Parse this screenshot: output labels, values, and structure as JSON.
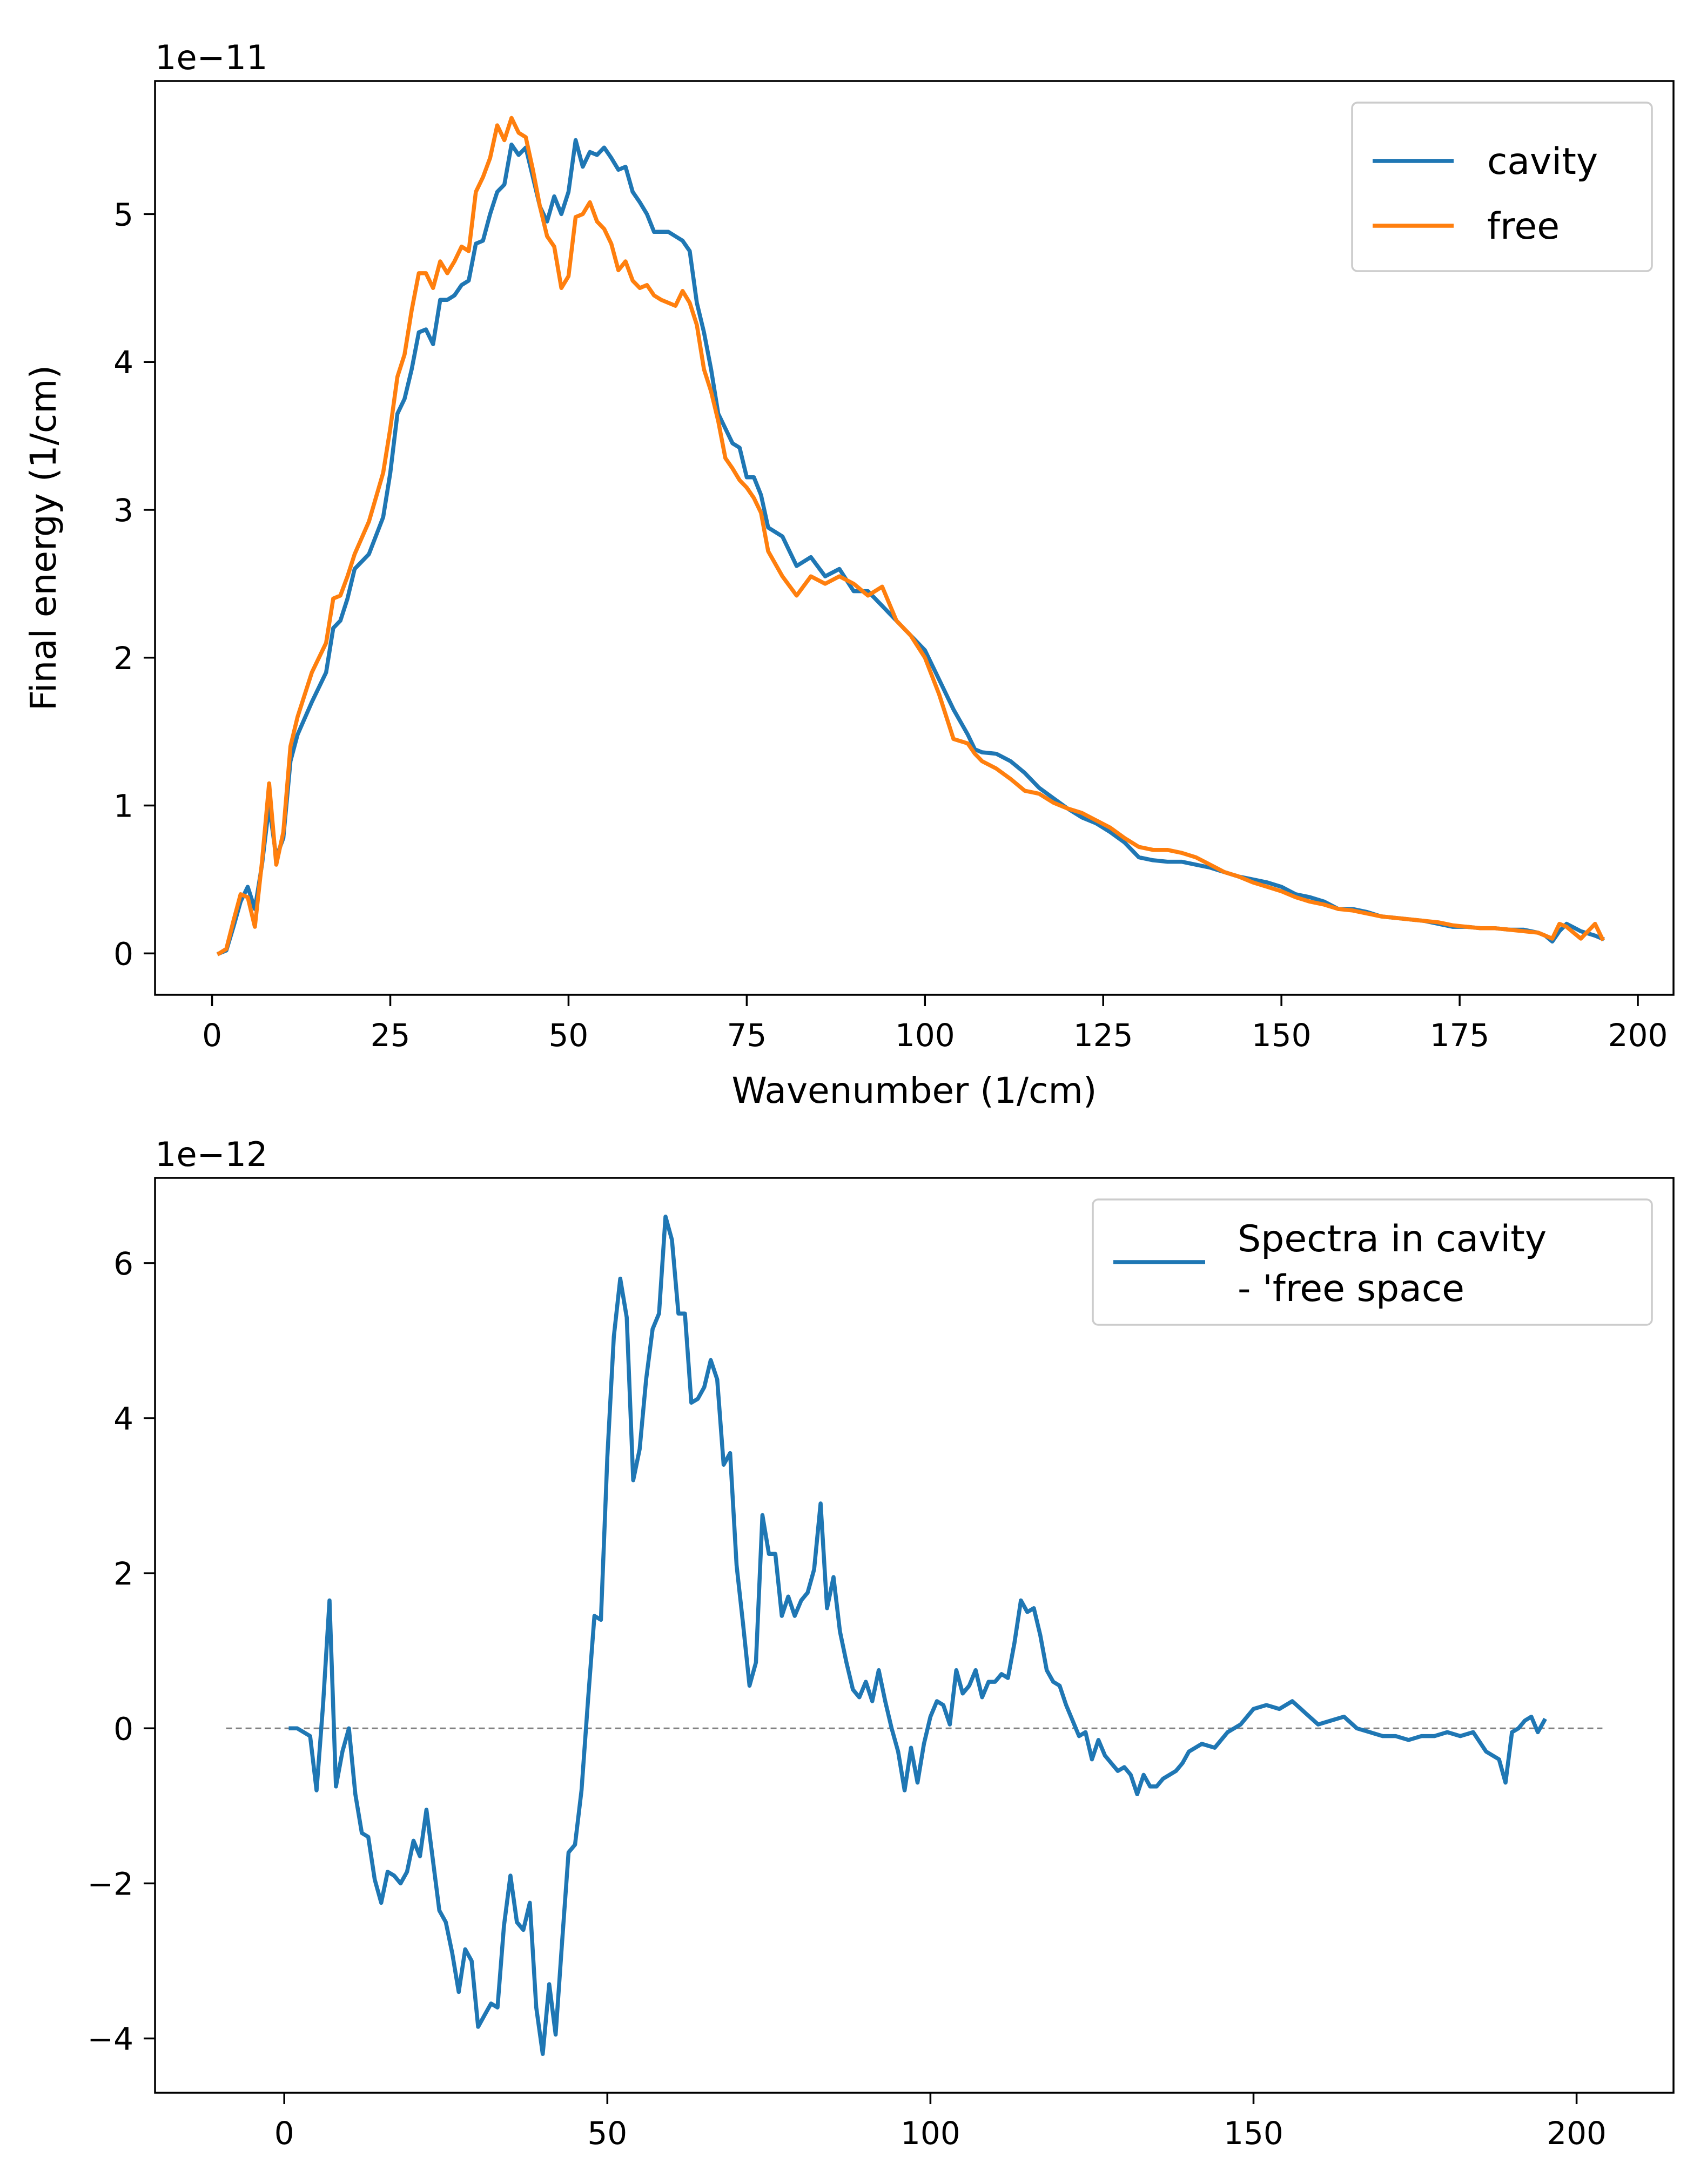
{
  "chart_data": [
    {
      "type": "line",
      "xlabel": "Wavenumber (1/cm)",
      "ylabel": "Final energy (1/cm)",
      "y_scale_label": "1e−11",
      "xlim": [
        -8,
        205
      ],
      "ylim": [
        -0.28,
        5.9
      ],
      "xticks": [
        0,
        25,
        50,
        75,
        100,
        125,
        150,
        175,
        200
      ],
      "yticks": [
        0,
        1,
        2,
        3,
        4,
        5
      ],
      "legend_position": "top-right",
      "series": [
        {
          "name": "cavity",
          "color": "#1f77b4",
          "x": [
            1,
            2,
            3,
            4,
            5,
            6,
            7,
            8,
            9,
            10,
            11,
            12,
            14,
            16,
            17,
            18,
            19,
            20,
            22,
            24,
            25,
            26,
            27,
            28,
            29,
            30,
            31,
            32,
            33,
            34,
            35,
            36,
            37,
            38,
            39,
            40,
            41,
            42,
            43,
            44,
            45,
            46,
            47,
            48,
            49,
            50,
            51,
            52,
            53,
            54,
            55,
            56,
            57,
            58,
            59,
            60,
            61,
            62,
            63,
            64,
            65,
            66,
            67,
            68,
            69,
            70,
            71,
            72,
            73,
            74,
            75,
            76,
            77,
            78,
            80,
            82,
            84,
            86,
            88,
            90,
            92,
            94,
            96,
            98,
            100,
            102,
            104,
            106,
            107,
            108,
            110,
            112,
            114,
            116,
            118,
            120,
            122,
            124,
            126,
            128,
            130,
            132,
            134,
            136,
            138,
            140,
            142,
            144,
            146,
            148,
            150,
            152,
            154,
            156,
            158,
            160,
            162,
            164,
            166,
            168,
            170,
            172,
            174,
            176,
            178,
            180,
            182,
            184,
            186,
            187,
            188,
            189,
            190,
            192,
            194,
            195
          ],
          "values": [
            0.0,
            0.02,
            0.18,
            0.35,
            0.45,
            0.3,
            0.6,
            1.0,
            0.65,
            0.78,
            1.3,
            1.48,
            1.7,
            1.9,
            2.2,
            2.25,
            2.4,
            2.6,
            2.7,
            2.95,
            3.25,
            3.65,
            3.75,
            3.95,
            4.2,
            4.22,
            4.12,
            4.42,
            4.42,
            4.45,
            4.52,
            4.55,
            4.8,
            4.82,
            5.0,
            5.15,
            5.2,
            5.47,
            5.4,
            5.45,
            5.25,
            5.05,
            4.95,
            5.12,
            5.0,
            5.15,
            5.5,
            5.32,
            5.42,
            5.4,
            5.45,
            5.38,
            5.3,
            5.32,
            5.15,
            5.08,
            5.0,
            4.88,
            4.88,
            4.88,
            4.85,
            4.82,
            4.75,
            4.4,
            4.2,
            3.95,
            3.65,
            3.55,
            3.45,
            3.42,
            3.22,
            3.22,
            3.1,
            2.88,
            2.82,
            2.62,
            2.68,
            2.55,
            2.6,
            2.45,
            2.45,
            2.35,
            2.25,
            2.15,
            2.05,
            1.85,
            1.65,
            1.48,
            1.38,
            1.36,
            1.35,
            1.3,
            1.22,
            1.12,
            1.05,
            0.98,
            0.92,
            0.88,
            0.82,
            0.75,
            0.65,
            0.63,
            0.62,
            0.62,
            0.6,
            0.58,
            0.55,
            0.52,
            0.5,
            0.48,
            0.45,
            0.4,
            0.38,
            0.35,
            0.3,
            0.3,
            0.28,
            0.25,
            0.24,
            0.23,
            0.22,
            0.2,
            0.18,
            0.18,
            0.17,
            0.17,
            0.16,
            0.16,
            0.14,
            0.12,
            0.08,
            0.15,
            0.2,
            0.15,
            0.12,
            0.1
          ]
        },
        {
          "name": "free",
          "color": "#ff7f0e",
          "x": [
            1,
            2,
            3,
            4,
            5,
            6,
            7,
            8,
            9,
            10,
            11,
            12,
            14,
            16,
            17,
            18,
            19,
            20,
            22,
            24,
            25,
            26,
            27,
            28,
            29,
            30,
            31,
            32,
            33,
            34,
            35,
            36,
            37,
            38,
            39,
            40,
            41,
            42,
            43,
            44,
            45,
            46,
            47,
            48,
            49,
            50,
            51,
            52,
            53,
            54,
            55,
            56,
            57,
            58,
            59,
            60,
            61,
            62,
            63,
            64,
            65,
            66,
            67,
            68,
            69,
            70,
            71,
            72,
            73,
            74,
            75,
            76,
            77,
            78,
            80,
            82,
            84,
            86,
            88,
            90,
            92,
            94,
            96,
            98,
            100,
            102,
            104,
            106,
            107,
            108,
            110,
            112,
            114,
            116,
            118,
            120,
            122,
            124,
            126,
            128,
            130,
            132,
            134,
            136,
            138,
            140,
            142,
            144,
            146,
            148,
            150,
            152,
            154,
            156,
            158,
            160,
            162,
            164,
            166,
            168,
            170,
            172,
            174,
            176,
            178,
            180,
            182,
            184,
            186,
            187,
            188,
            189,
            190,
            192,
            194,
            195
          ],
          "values": [
            0.0,
            0.03,
            0.22,
            0.4,
            0.38,
            0.18,
            0.62,
            1.15,
            0.6,
            0.82,
            1.4,
            1.6,
            1.9,
            2.1,
            2.4,
            2.42,
            2.55,
            2.7,
            2.92,
            3.25,
            3.55,
            3.9,
            4.05,
            4.35,
            4.6,
            4.6,
            4.5,
            4.68,
            4.6,
            4.68,
            4.78,
            4.75,
            5.15,
            5.25,
            5.38,
            5.6,
            5.5,
            5.65,
            5.55,
            5.52,
            5.3,
            5.05,
            4.85,
            4.78,
            4.5,
            4.58,
            4.98,
            5.0,
            5.08,
            4.95,
            4.9,
            4.8,
            4.62,
            4.68,
            4.55,
            4.5,
            4.52,
            4.45,
            4.42,
            4.4,
            4.38,
            4.48,
            4.4,
            4.25,
            3.95,
            3.8,
            3.6,
            3.35,
            3.28,
            3.2,
            3.15,
            3.08,
            2.98,
            2.72,
            2.55,
            2.42,
            2.55,
            2.5,
            2.55,
            2.5,
            2.42,
            2.48,
            2.25,
            2.15,
            2.0,
            1.75,
            1.45,
            1.42,
            1.35,
            1.3,
            1.25,
            1.18,
            1.1,
            1.08,
            1.02,
            0.98,
            0.95,
            0.9,
            0.85,
            0.78,
            0.72,
            0.7,
            0.7,
            0.68,
            0.65,
            0.6,
            0.55,
            0.52,
            0.48,
            0.45,
            0.42,
            0.38,
            0.35,
            0.33,
            0.3,
            0.29,
            0.27,
            0.25,
            0.24,
            0.23,
            0.22,
            0.21,
            0.19,
            0.18,
            0.17,
            0.17,
            0.16,
            0.15,
            0.14,
            0.12,
            0.1,
            0.2,
            0.18,
            0.1,
            0.2,
            0.1
          ]
        }
      ]
    },
    {
      "type": "line",
      "xlabel": "",
      "ylabel": "",
      "y_scale_label": "1e−12",
      "xlim": [
        -20,
        215
      ],
      "ylim": [
        -4.7,
        7.1
      ],
      "xticks": [
        0,
        50,
        100,
        150,
        200
      ],
      "yticks": [
        -4,
        -2,
        0,
        2,
        4,
        6
      ],
      "legend_position": "top-right",
      "reference_line": {
        "y": 0,
        "x_from": -9,
        "x_to": 204,
        "style": "dashed",
        "color": "#808080"
      },
      "series": [
        {
          "name": "Spectra in cavity\n- 'free space",
          "color": "#1f77b4",
          "x": [
            1,
            2,
            3,
            4,
            5,
            6,
            7,
            8,
            9,
            10,
            11,
            12,
            13,
            14,
            15,
            16,
            17,
            18,
            19,
            20,
            21,
            22,
            23,
            24,
            25,
            26,
            27,
            28,
            29,
            30,
            31,
            32,
            33,
            34,
            35,
            36,
            37,
            38,
            39,
            40,
            41,
            42,
            43,
            44,
            45,
            46,
            47,
            48,
            49,
            50,
            51,
            52,
            53,
            54,
            55,
            56,
            57,
            58,
            59,
            60,
            61,
            62,
            63,
            64,
            65,
            66,
            67,
            68,
            69,
            70,
            71,
            72,
            73,
            74,
            75,
            76,
            77,
            78,
            79,
            80,
            81,
            82,
            83,
            84,
            85,
            86,
            87,
            88,
            89,
            90,
            91,
            92,
            93,
            94,
            95,
            96,
            97,
            98,
            99,
            100,
            101,
            102,
            103,
            104,
            105,
            106,
            107,
            108,
            109,
            110,
            111,
            112,
            113,
            114,
            115,
            116,
            117,
            118,
            119,
            120,
            121,
            122,
            123,
            124,
            125,
            126,
            127,
            128,
            129,
            130,
            131,
            132,
            133,
            134,
            135,
            136,
            137,
            138,
            139,
            140,
            142,
            144,
            146,
            148,
            150,
            152,
            154,
            156,
            158,
            160,
            162,
            164,
            166,
            168,
            170,
            172,
            174,
            176,
            178,
            180,
            182,
            184,
            186,
            188,
            189,
            190,
            191,
            192,
            193,
            194,
            195
          ],
          "values": [
            0.0,
            0.0,
            -0.05,
            -0.1,
            -0.8,
            0.3,
            1.65,
            -0.75,
            -0.3,
            0.0,
            -0.85,
            -1.35,
            -1.4,
            -1.95,
            -2.25,
            -1.85,
            -1.9,
            -2.0,
            -1.85,
            -1.45,
            -1.65,
            -1.05,
            -1.7,
            -2.35,
            -2.5,
            -2.9,
            -3.4,
            -2.85,
            -3.0,
            -3.85,
            -3.7,
            -3.55,
            -3.6,
            -2.55,
            -1.9,
            -2.5,
            -2.6,
            -2.25,
            -3.6,
            -4.2,
            -3.3,
            -3.95,
            -2.75,
            -1.6,
            -1.5,
            -0.8,
            0.35,
            1.45,
            1.4,
            3.5,
            5.05,
            5.8,
            5.3,
            3.2,
            3.6,
            4.5,
            5.15,
            5.35,
            6.6,
            6.3,
            5.35,
            5.35,
            4.2,
            4.25,
            4.4,
            4.75,
            4.5,
            3.4,
            3.55,
            2.1,
            1.35,
            0.55,
            0.85,
            2.75,
            2.25,
            2.25,
            1.45,
            1.7,
            1.45,
            1.65,
            1.75,
            2.05,
            2.9,
            1.55,
            1.95,
            1.25,
            0.85,
            0.5,
            0.4,
            0.6,
            0.35,
            0.75,
            0.35,
            0.0,
            -0.3,
            -0.8,
            -0.25,
            -0.7,
            -0.2,
            0.15,
            0.35,
            0.3,
            0.05,
            0.75,
            0.45,
            0.55,
            0.75,
            0.4,
            0.6,
            0.6,
            0.7,
            0.65,
            1.1,
            1.65,
            1.5,
            1.55,
            1.2,
            0.75,
            0.6,
            0.55,
            0.3,
            0.1,
            -0.1,
            -0.05,
            -0.4,
            -0.15,
            -0.35,
            -0.45,
            -0.55,
            -0.5,
            -0.6,
            -0.85,
            -0.6,
            -0.75,
            -0.75,
            -0.65,
            -0.6,
            -0.55,
            -0.45,
            -0.3,
            -0.2,
            -0.25,
            -0.05,
            0.05,
            0.25,
            0.3,
            0.25,
            0.35,
            0.2,
            0.05,
            0.1,
            0.15,
            0.0,
            -0.05,
            -0.1,
            -0.1,
            -0.15,
            -0.1,
            -0.1,
            -0.05,
            -0.1,
            -0.05,
            -0.3,
            -0.4,
            -0.7,
            -0.05,
            0.0,
            0.1,
            0.15,
            -0.05,
            0.1
          ]
        }
      ]
    }
  ]
}
